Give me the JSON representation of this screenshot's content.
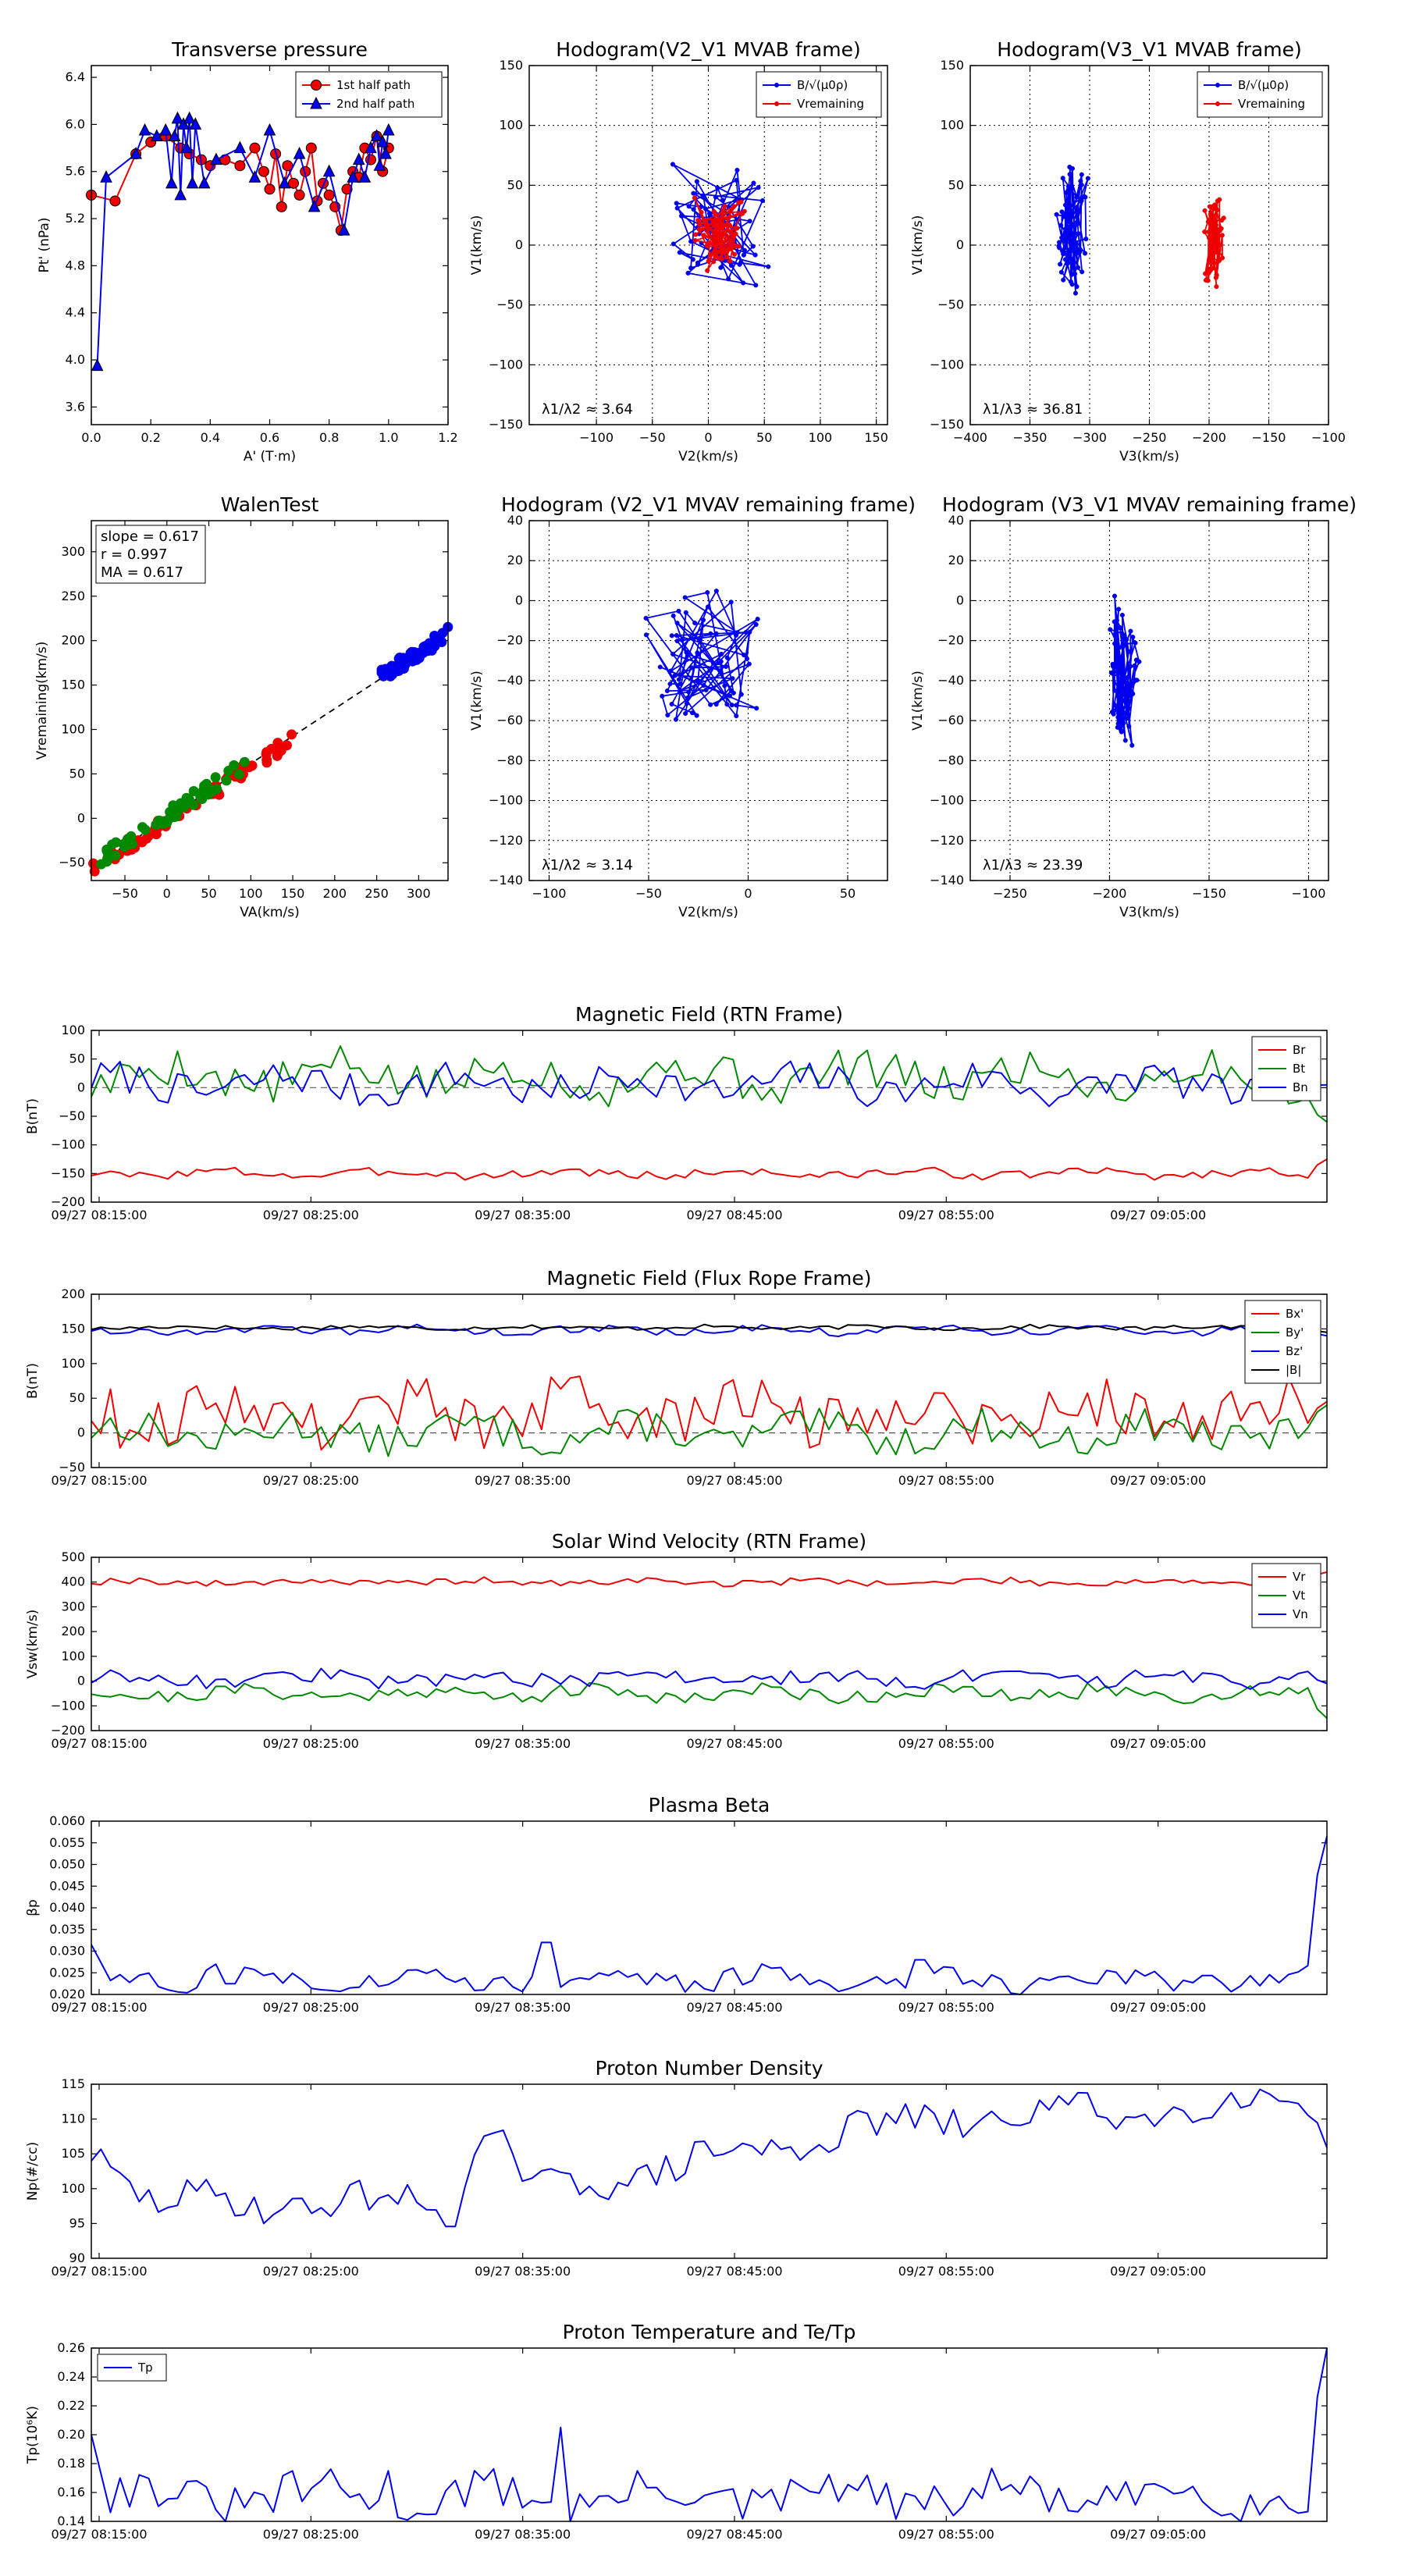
{
  "figure": {
    "background": "#ffffff"
  },
  "colors": {
    "red": "#ee0000",
    "green": "#008800",
    "blue": "#0000ee",
    "black": "#000000",
    "grey": "#666666"
  },
  "chart_data": [
    {
      "id": "tp",
      "type": "line",
      "title": "Transverse pressure",
      "xlabel": "A' (T·m)",
      "ylabel": "Pt' (nPa)",
      "xlim": [
        0,
        1.2
      ],
      "ylim": [
        3.45,
        6.5
      ],
      "xticks": [
        0,
        0.2,
        0.4,
        0.6,
        0.8,
        1.0,
        1.2
      ],
      "yticks": [
        3.6,
        4.0,
        4.4,
        4.8,
        5.2,
        5.6,
        6.0,
        6.4
      ],
      "grid": false,
      "legend": "top-right",
      "series": [
        {
          "name": "1st half path",
          "color": "red",
          "marker": "circle",
          "x": [
            0.0,
            0.08,
            0.15,
            0.2,
            0.25,
            0.3,
            0.33,
            0.37,
            0.4,
            0.45,
            0.5,
            0.55,
            0.58,
            0.6,
            0.62,
            0.64,
            0.66,
            0.68,
            0.7,
            0.72,
            0.74,
            0.76,
            0.78,
            0.8,
            0.82,
            0.84,
            0.86,
            0.88,
            0.9,
            0.92,
            0.94,
            0.96,
            0.98,
            1.0
          ],
          "y": [
            5.4,
            5.35,
            5.75,
            5.85,
            5.9,
            5.8,
            5.75,
            5.7,
            5.65,
            5.7,
            5.65,
            5.8,
            5.6,
            5.45,
            5.75,
            5.3,
            5.65,
            5.5,
            5.4,
            5.6,
            5.8,
            5.35,
            5.5,
            5.4,
            5.3,
            5.1,
            5.45,
            5.6,
            5.55,
            5.8,
            5.7,
            5.9,
            5.6,
            5.8
          ]
        },
        {
          "name": "2nd half path",
          "color": "blue",
          "marker": "triangle",
          "x": [
            0.02,
            0.05,
            0.15,
            0.18,
            0.22,
            0.25,
            0.27,
            0.28,
            0.29,
            0.3,
            0.31,
            0.32,
            0.33,
            0.34,
            0.35,
            0.38,
            0.42,
            0.5,
            0.55,
            0.6,
            0.65,
            0.7,
            0.75,
            0.8,
            0.85,
            0.88,
            0.9,
            0.92,
            0.94,
            0.96,
            0.97,
            0.98,
            0.99,
            1.0
          ],
          "y": [
            3.95,
            5.55,
            5.75,
            5.95,
            5.9,
            5.95,
            5.5,
            5.9,
            6.05,
            5.4,
            6.0,
            5.8,
            6.05,
            5.5,
            6.0,
            5.5,
            5.7,
            5.8,
            5.55,
            5.95,
            5.5,
            5.75,
            5.3,
            5.6,
            5.1,
            5.55,
            5.7,
            5.55,
            5.8,
            5.9,
            5.65,
            5.85,
            5.75,
            5.95
          ]
        }
      ]
    },
    {
      "id": "h21",
      "type": "line",
      "title": "Hodogram(V2_V1 MVAB frame)",
      "xlabel": "V2(km/s)",
      "ylabel": "V1(km/s)",
      "xlim": [
        -160,
        160
      ],
      "ylim": [
        -150,
        150
      ],
      "xticks": [
        -100,
        -50,
        0,
        50,
        100,
        150
      ],
      "yticks": [
        -150,
        -100,
        -50,
        0,
        50,
        100,
        150
      ],
      "grid": true,
      "legend": "top-right",
      "annotation": "λ1/λ2 ≈ 3.64",
      "seed": 11,
      "series": [
        {
          "name": "B/√(μ0ρ)",
          "color": "blue",
          "center": [
            10,
            10
          ],
          "spread": [
            45,
            50
          ],
          "n": 70
        },
        {
          "name": "Vremaining",
          "color": "red",
          "center": [
            10,
            5
          ],
          "spread": [
            22,
            30
          ],
          "n": 70
        }
      ]
    },
    {
      "id": "h31",
      "type": "line",
      "title": "Hodogram(V3_V1 MVAB frame)",
      "xlabel": "V3(km/s)",
      "ylabel": "V1(km/s)",
      "xlim": [
        -400,
        -100
      ],
      "ylim": [
        -150,
        150
      ],
      "xticks": [
        -400,
        -350,
        -300,
        -250,
        -200,
        -150,
        -100
      ],
      "yticks": [
        -150,
        -100,
        -50,
        0,
        50,
        100,
        150
      ],
      "grid": true,
      "legend": "top-right",
      "annotation": "λ1/λ3 ≈ 36.81",
      "seed": 23,
      "series": [
        {
          "name": "B/√(μ0ρ)",
          "color": "blue",
          "center": [
            -315,
            20
          ],
          "spread": [
            12,
            55
          ],
          "n": 70
        },
        {
          "name": "Vremaining",
          "color": "red",
          "center": [
            -195,
            5
          ],
          "spread": [
            8,
            35
          ],
          "n": 70
        }
      ]
    },
    {
      "id": "walen",
      "type": "scatter",
      "title": "WalenTest",
      "xlabel": "VA(km/s)",
      "ylabel": "Vremaining(km/s)",
      "xlim": [
        -90,
        335
      ],
      "ylim": [
        -70,
        335
      ],
      "xticks": [
        -50,
        0,
        50,
        100,
        150,
        200,
        250,
        300
      ],
      "yticks": [
        -50,
        0,
        50,
        100,
        150,
        200,
        250,
        300
      ],
      "grid": false,
      "annotation": [
        "slope = 0.617",
        "r = 0.997",
        "MA = 0.617"
      ],
      "fit": {
        "slope": 0.617,
        "intercept": 0
      },
      "clusters": [
        {
          "color": "red",
          "xrange": [
            -90,
            150
          ],
          "n": 60,
          "offset": -4
        },
        {
          "color": "green",
          "xrange": [
            -80,
            95
          ],
          "n": 55,
          "offset": 3
        },
        {
          "color": "blue",
          "xrange": [
            255,
            335
          ],
          "n": 60,
          "offset": 2
        }
      ]
    },
    {
      "id": "h21r",
      "type": "line",
      "title": "Hodogram (V2_V1 MVAV remaining frame)",
      "xlabel": "V2(km/s)",
      "ylabel": "V1(km/s)",
      "xlim": [
        -110,
        70
      ],
      "ylim": [
        -140,
        40
      ],
      "xticks": [
        -100,
        -50,
        0,
        50
      ],
      "yticks": [
        -140,
        -120,
        -100,
        -80,
        -60,
        -40,
        -20,
        0,
        20,
        40
      ],
      "grid": true,
      "annotation": "λ1/λ2 ≈ 3.14",
      "seed": 37,
      "series": [
        {
          "name": "",
          "color": "blue",
          "center": [
            -20,
            -30
          ],
          "spread": [
            30,
            32
          ],
          "n": 75
        }
      ]
    },
    {
      "id": "h31r",
      "type": "line",
      "title": "Hodogram (V3_V1 MVAV remaining frame)",
      "xlabel": "V3(km/s)",
      "ylabel": "V1(km/s)",
      "xlim": [
        -270,
        -90
      ],
      "ylim": [
        -140,
        40
      ],
      "xticks": [
        -250,
        -200,
        -150,
        -100
      ],
      "yticks": [
        -140,
        -120,
        -100,
        -80,
        -60,
        -40,
        -20,
        0,
        20,
        40
      ],
      "grid": true,
      "annotation": "λ1/λ3 ≈ 23.39",
      "seed": 41,
      "series": [
        {
          "name": "",
          "color": "blue",
          "center": [
            -193,
            -35
          ],
          "spread": [
            7,
            35
          ],
          "n": 75
        }
      ]
    },
    {
      "id": "brtn",
      "type": "timeseries",
      "title": "Magnetic Field (RTN Frame)",
      "ylabel": "B(nT)",
      "ylim": [
        -200,
        100
      ],
      "yticks": [
        -200,
        -150,
        -100,
        -50,
        0,
        50,
        100
      ],
      "xticklabels": [
        "09/27 08:15:00",
        "09/27 08:25:00",
        "09/27 08:35:00",
        "09/27 08:45:00",
        "09/27 08:55:00",
        "09/27 09:05:00"
      ],
      "zero_line": true,
      "legend": "top-right",
      "series": [
        {
          "name": "Br",
          "color": "red",
          "base": -150,
          "amp": 4,
          "end": -125,
          "seed": 3
        },
        {
          "name": "Bt",
          "color": "green",
          "base": 20,
          "amp": 18,
          "end": -60,
          "seed": 5
        },
        {
          "name": "Bn",
          "color": "blue",
          "base": 5,
          "amp": 15,
          "end": 5,
          "seed": 7
        }
      ]
    },
    {
      "id": "bfr",
      "type": "timeseries",
      "title": "Magnetic Field (Flux Rope Frame)",
      "ylabel": "B(nT)",
      "ylim": [
        -50,
        200
      ],
      "yticks": [
        -50,
        0,
        50,
        100,
        150,
        200
      ],
      "xticklabels": [
        "09/27 08:15:00",
        "09/27 08:25:00",
        "09/27 08:35:00",
        "09/27 08:45:00",
        "09/27 08:55:00",
        "09/27 09:05:00"
      ],
      "zero_line": true,
      "legend": "top-right",
      "series": [
        {
          "name": "Bx'",
          "color": "red",
          "base": 30,
          "amp": 20,
          "end": 45,
          "seed": 9
        },
        {
          "name": "By'",
          "color": "green",
          "base": 0,
          "amp": 12,
          "end": 40,
          "seed": 13
        },
        {
          "name": "Bz'",
          "color": "blue",
          "base": 148,
          "amp": 3,
          "end": 140,
          "seed": 15
        },
        {
          "name": "|B|",
          "color": "black",
          "base": 152,
          "amp": 1.5,
          "end": 145,
          "seed": 17
        }
      ]
    },
    {
      "id": "vsw",
      "type": "timeseries",
      "title": "Solar Wind Velocity (RTN Frame)",
      "ylabel": "Vsw(km/s)",
      "ylim": [
        -200,
        500
      ],
      "yticks": [
        -200,
        -100,
        0,
        100,
        200,
        300,
        400,
        500
      ],
      "xticklabels": [
        "09/27 08:15:00",
        "09/27 08:25:00",
        "09/27 08:35:00",
        "09/27 08:45:00",
        "09/27 08:55:00",
        "09/27 09:05:00"
      ],
      "zero_line": false,
      "legend": "top-right",
      "series": [
        {
          "name": "Vr",
          "color": "red",
          "base": 400,
          "amp": 7,
          "end": 440,
          "seed": 19
        },
        {
          "name": "Vt",
          "color": "green",
          "base": -50,
          "amp": 15,
          "end": -150,
          "seed": 21
        },
        {
          "name": "Vn",
          "color": "blue",
          "base": 10,
          "amp": 15,
          "end": -10,
          "seed": 25
        }
      ]
    },
    {
      "id": "beta",
      "type": "timeseries",
      "title": "Plasma Beta",
      "ylabel": "βp",
      "ylim": [
        0.02,
        0.06
      ],
      "yticks": [
        0.02,
        0.025,
        0.03,
        0.035,
        0.04,
        0.045,
        0.05,
        0.055,
        0.06
      ],
      "xticklabels": [
        "09/27 08:15:00",
        "09/27 08:25:00",
        "09/27 08:35:00",
        "09/27 08:45:00",
        "09/27 08:55:00",
        "09/27 09:05:00"
      ],
      "zero_line": false,
      "series": [
        {
          "name": "βp",
          "color": "blue",
          "base": 0.0235,
          "amp": 0.0012,
          "start": 0.0315,
          "end": 0.0565,
          "seed": 27,
          "spikes": [
            [
              0.1,
              0.027
            ],
            [
              0.37,
              0.032
            ],
            [
              0.67,
              0.028
            ]
          ]
        }
      ]
    },
    {
      "id": "np",
      "type": "timeseries",
      "title": "Proton Number Density",
      "ylabel": "Np(#/cc)",
      "ylim": [
        90,
        115
      ],
      "yticks": [
        90,
        95,
        100,
        105,
        110,
        115
      ],
      "xticklabels": [
        "09/27 08:15:00",
        "09/27 08:25:00",
        "09/27 08:35:00",
        "09/27 08:45:00",
        "09/27 08:55:00",
        "09/27 09:05:00"
      ],
      "zero_line": false,
      "series": [
        {
          "name": "Np",
          "color": "blue",
          "trend": [
            [
              0,
              106
            ],
            [
              0.05,
              98
            ],
            [
              0.3,
              98
            ],
            [
              0.31,
              106
            ],
            [
              0.33,
              107
            ],
            [
              0.36,
              99
            ],
            [
              0.4,
              101
            ],
            [
              0.5,
              104
            ],
            [
              0.6,
              108
            ],
            [
              0.7,
              110
            ],
            [
              0.8,
              111
            ],
            [
              0.9,
              111.5
            ],
            [
              0.99,
              114
            ],
            [
              1.0,
              106
            ]
          ],
          "amp": 1.2,
          "seed": 29
        }
      ]
    },
    {
      "id": "tpt",
      "type": "timeseries",
      "title": "Proton Temperature and Te/Tp",
      "ylabel": "Tp(10⁶K)",
      "ylim": [
        0.14,
        0.26
      ],
      "yticks": [
        0.14,
        0.16,
        0.18,
        0.2,
        0.22,
        0.24,
        0.26
      ],
      "xticklabels": [
        "09/27 08:15:00",
        "09/27 08:25:00",
        "09/27 08:35:00",
        "09/27 08:45:00",
        "09/27 08:55:00",
        "09/27 09:05:00"
      ],
      "zero_line": false,
      "legend": "top-left",
      "series": [
        {
          "name": "Tp",
          "color": "blue",
          "base": 0.157,
          "amp": 0.007,
          "start": 0.2,
          "end": 0.26,
          "seed": 31,
          "spikes": [
            [
              0.38,
              0.205
            ],
            [
              0.24,
              0.175
            ]
          ]
        }
      ]
    }
  ]
}
